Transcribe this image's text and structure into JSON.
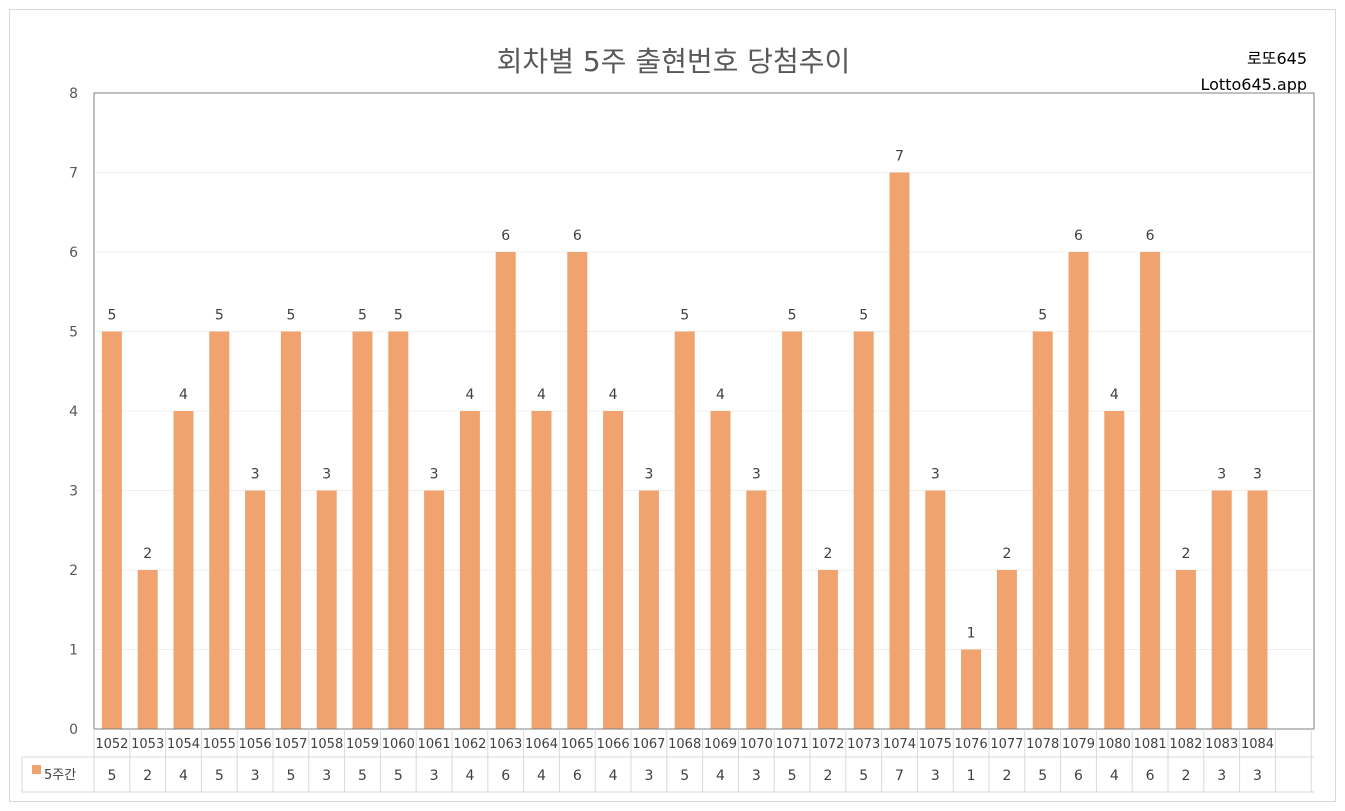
{
  "header": {
    "title": "회차별 5주 출현번호 당첨추이",
    "brand_line1": "로또645",
    "brand_line2": "Lotto645.app"
  },
  "colors": {
    "bar": "#F0A36E",
    "grid": "#f0f0f0",
    "axis": "#808080"
  },
  "chart_data": {
    "type": "bar",
    "title": "회차별 5주 출현번호 당첨추이",
    "categories": [
      "1052",
      "1053",
      "1054",
      "1055",
      "1056",
      "1057",
      "1058",
      "1059",
      "1060",
      "1061",
      "1062",
      "1063",
      "1064",
      "1065",
      "1066",
      "1067",
      "1068",
      "1069",
      "1070",
      "1071",
      "1072",
      "1073",
      "1074",
      "1075",
      "1076",
      "1077",
      "1078",
      "1079",
      "1080",
      "1081",
      "1082",
      "1083",
      "1084"
    ],
    "series": [
      {
        "name": "5주간",
        "values": [
          5,
          2,
          4,
          5,
          3,
          5,
          3,
          5,
          5,
          3,
          4,
          6,
          4,
          6,
          4,
          3,
          5,
          4,
          3,
          5,
          2,
          5,
          7,
          3,
          1,
          2,
          5,
          6,
          4,
          6,
          2,
          3,
          3
        ]
      }
    ],
    "ylim": [
      0,
      8
    ],
    "yticks": [
      0,
      1,
      2,
      3,
      4,
      5,
      6,
      7,
      8
    ],
    "grid": true,
    "data_labels": true,
    "data_table": true,
    "legend": "data-table-left"
  }
}
